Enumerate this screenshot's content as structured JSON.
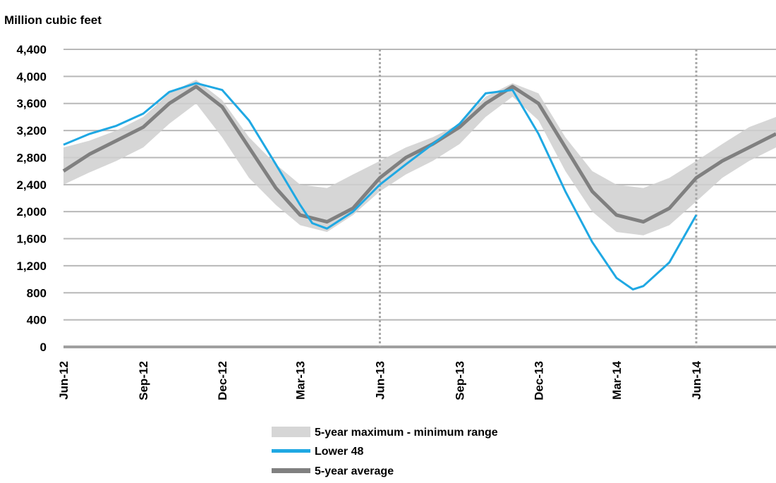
{
  "chart_data": {
    "type": "line",
    "title": "",
    "ylabel": "Million cubic feet",
    "xlabel": "",
    "ylim": [
      0,
      4400
    ],
    "yticks": [
      0,
      400,
      800,
      1200,
      1600,
      2000,
      2400,
      2800,
      3200,
      3600,
      4000,
      4400
    ],
    "ytick_labels": [
      "0",
      "400",
      "800",
      "1,200",
      "1,600",
      "2,000",
      "2,400",
      "2,800",
      "3,200",
      "3,600",
      "4,000",
      "4,400"
    ],
    "xlim": [
      "2012-06-01",
      "2014-09-01"
    ],
    "xtick_labels": [
      "Jun-12",
      "Sep-12",
      "Dec-12",
      "Mar-13",
      "Jun-13",
      "Sep-13",
      "Dec-13",
      "Mar-14",
      "Jun-14"
    ],
    "xtick_dates": [
      "2012-06-01",
      "2012-09-01",
      "2012-12-01",
      "2013-03-01",
      "2013-06-01",
      "2013-09-01",
      "2013-12-01",
      "2014-03-01",
      "2014-06-01"
    ],
    "vertical_markers": [
      "2013-06-01",
      "2014-06-01"
    ],
    "grid": "horizontal",
    "legend_position": "bottom-center",
    "series": [
      {
        "name": "5-year maximum - minimum range",
        "type": "band",
        "color": "#cfcfcf",
        "x": [
          "2012-06-01",
          "2012-07-01",
          "2012-08-01",
          "2012-09-01",
          "2012-10-01",
          "2012-11-01",
          "2012-12-01",
          "2013-01-01",
          "2013-02-01",
          "2013-03-01",
          "2013-04-01",
          "2013-05-01",
          "2013-06-01",
          "2013-07-01",
          "2013-08-01",
          "2013-09-01",
          "2013-10-01",
          "2013-11-01",
          "2013-12-01",
          "2014-01-01",
          "2014-02-01",
          "2014-03-01",
          "2014-04-01",
          "2014-05-01",
          "2014-06-01",
          "2014-07-01",
          "2014-08-01",
          "2014-09-01"
        ],
        "lower": [
          2400,
          2580,
          2750,
          2950,
          3300,
          3600,
          3100,
          2500,
          2100,
          1800,
          1700,
          1950,
          2300,
          2550,
          2750,
          3000,
          3400,
          3700,
          3350,
          2600,
          2000,
          1700,
          1650,
          1800,
          2150,
          2500,
          2750,
          2950
        ],
        "upper": [
          2950,
          3050,
          3200,
          3400,
          3750,
          3950,
          3650,
          3100,
          2700,
          2400,
          2350,
          2550,
          2750,
          2950,
          3100,
          3300,
          3700,
          3900,
          3750,
          3100,
          2600,
          2400,
          2350,
          2500,
          2750,
          3000,
          3250,
          3400
        ]
      },
      {
        "name": "Lower 48",
        "type": "line",
        "color": "#1fa8e3",
        "x": [
          "2012-06-01",
          "2012-07-01",
          "2012-08-01",
          "2012-09-01",
          "2012-10-01",
          "2012-11-01",
          "2012-12-01",
          "2013-01-01",
          "2013-02-01",
          "2013-03-01",
          "2013-03-15",
          "2013-04-01",
          "2013-05-01",
          "2013-06-01",
          "2013-07-01",
          "2013-08-01",
          "2013-09-01",
          "2013-10-01",
          "2013-11-01",
          "2013-12-01",
          "2014-01-01",
          "2014-02-01",
          "2014-03-01",
          "2014-03-20",
          "2014-04-01",
          "2014-05-01",
          "2014-06-01"
        ],
        "values": [
          2990,
          3150,
          3270,
          3450,
          3770,
          3900,
          3800,
          3350,
          2700,
          2100,
          1830,
          1750,
          2000,
          2400,
          2700,
          3000,
          3300,
          3750,
          3800,
          3150,
          2300,
          1550,
          1020,
          850,
          900,
          1250,
          1950
        ]
      },
      {
        "name": "5-year average",
        "type": "line",
        "color": "#808080",
        "x": [
          "2012-06-01",
          "2012-07-01",
          "2012-08-01",
          "2012-09-01",
          "2012-10-01",
          "2012-11-01",
          "2012-12-01",
          "2013-01-01",
          "2013-02-01",
          "2013-03-01",
          "2013-04-01",
          "2013-05-01",
          "2013-06-01",
          "2013-07-01",
          "2013-08-01",
          "2013-09-01",
          "2013-10-01",
          "2013-11-01",
          "2013-12-01",
          "2014-01-01",
          "2014-02-01",
          "2014-03-01",
          "2014-04-01",
          "2014-05-01",
          "2014-06-01",
          "2014-07-01",
          "2014-08-01",
          "2014-09-01"
        ],
        "values": [
          2600,
          2850,
          3050,
          3250,
          3600,
          3850,
          3550,
          2950,
          2350,
          1950,
          1850,
          2050,
          2500,
          2800,
          3000,
          3250,
          3600,
          3850,
          3600,
          2950,
          2300,
          1950,
          1850,
          2050,
          2500,
          2750,
          2950,
          3150
        ]
      }
    ]
  }
}
